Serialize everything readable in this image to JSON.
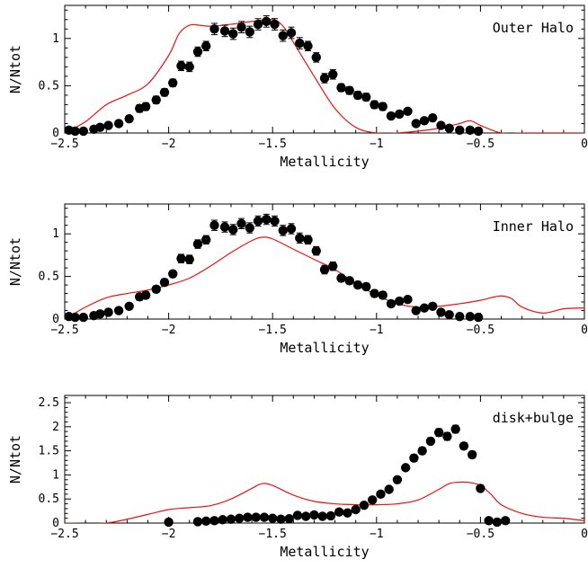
{
  "chart_data": [
    {
      "type": "scatter",
      "panel": "outer-halo",
      "annotation": "Outer Halo",
      "xlabel": "Metallicity",
      "ylabel": "N/Ntot",
      "xlim": [
        -2.5,
        0
      ],
      "ylim": [
        0,
        1.35
      ],
      "xticks": [
        {
          "v": -2.5,
          "label": "−2.5"
        },
        {
          "v": -2,
          "label": "−2"
        },
        {
          "v": -1.5,
          "label": "−1.5"
        },
        {
          "v": -1,
          "label": "−1"
        },
        {
          "v": -0.5,
          "label": "−0.5"
        },
        {
          "v": 0,
          "label": "0"
        }
      ],
      "yticks": [
        {
          "v": 0,
          "label": "0"
        },
        {
          "v": 0.5,
          "label": "0.5"
        },
        {
          "v": 1,
          "label": "1"
        }
      ],
      "points": {
        "x": [
          -2.48,
          -2.45,
          -2.41,
          -2.36,
          -2.33,
          -2.29,
          -2.24,
          -2.19,
          -2.14,
          -2.11,
          -2.06,
          -2.02,
          -1.98,
          -1.94,
          -1.9,
          -1.86,
          -1.82,
          -1.78,
          -1.73,
          -1.69,
          -1.65,
          -1.61,
          -1.57,
          -1.53,
          -1.49,
          -1.45,
          -1.41,
          -1.37,
          -1.33,
          -1.29,
          -1.25,
          -1.21,
          -1.17,
          -1.13,
          -1.09,
          -1.05,
          -1.01,
          -0.97,
          -0.93,
          -0.89,
          -0.85,
          -0.81,
          -0.77,
          -0.73,
          -0.69,
          -0.65,
          -0.6,
          -0.55,
          -0.51
        ],
        "y": [
          0.03,
          0.02,
          0.02,
          0.04,
          0.06,
          0.08,
          0.1,
          0.15,
          0.26,
          0.28,
          0.35,
          0.43,
          0.53,
          0.71,
          0.7,
          0.86,
          0.92,
          1.1,
          1.08,
          1.05,
          1.12,
          1.07,
          1.15,
          1.18,
          1.15,
          1.03,
          1.06,
          0.95,
          0.92,
          0.8,
          0.58,
          0.62,
          0.48,
          0.45,
          0.4,
          0.38,
          0.3,
          0.28,
          0.18,
          0.2,
          0.23,
          0.1,
          0.13,
          0.16,
          0.08,
          0.05,
          0.03,
          0.03,
          0.02
        ],
        "err": [
          0.03,
          0.03,
          0.03,
          0.03,
          0.03,
          0.03,
          0.03,
          0.03,
          0.04,
          0.04,
          0.04,
          0.04,
          0.04,
          0.05,
          0.05,
          0.05,
          0.05,
          0.06,
          0.06,
          0.06,
          0.06,
          0.06,
          0.06,
          0.06,
          0.06,
          0.06,
          0.06,
          0.06,
          0.05,
          0.05,
          0.05,
          0.05,
          0.04,
          0.04,
          0.04,
          0.04,
          0.04,
          0.04,
          0.03,
          0.03,
          0.03,
          0.03,
          0.03,
          0.03,
          0.03,
          0.03,
          0.03,
          0.03,
          0.03
        ]
      },
      "model_curve": {
        "x": [
          -2.5,
          -2.4,
          -2.3,
          -2.2,
          -2.1,
          -2.0,
          -1.95,
          -1.9,
          -1.85,
          -1.8,
          -1.7,
          -1.6,
          -1.5,
          -1.45,
          -1.4,
          -1.3,
          -1.2,
          -1.1,
          -1.0,
          -0.9,
          -0.8,
          -0.7,
          -0.6,
          -0.55,
          -0.5,
          -0.4,
          -0.3,
          -0.2,
          -0.1,
          0.0
        ],
        "y": [
          0.0,
          0.12,
          0.3,
          0.4,
          0.52,
          0.82,
          1.05,
          1.14,
          1.14,
          1.13,
          1.15,
          1.18,
          1.2,
          1.13,
          0.96,
          0.6,
          0.26,
          0.06,
          0.0,
          0.0,
          0.02,
          0.05,
          0.1,
          0.13,
          0.08,
          0.0,
          0.0,
          0.0,
          0.0,
          0.0
        ]
      },
      "colors": {
        "points": "#000000",
        "curve": "#ee1111"
      }
    },
    {
      "type": "scatter",
      "panel": "inner-halo",
      "annotation": "Inner Halo",
      "xlabel": "Metallicity",
      "ylabel": "N/Ntot",
      "xlim": [
        -2.5,
        0
      ],
      "ylim": [
        0,
        1.35
      ],
      "xticks": [
        {
          "v": -2.5,
          "label": "−2.5"
        },
        {
          "v": -2,
          "label": "−2"
        },
        {
          "v": -1.5,
          "label": "−1.5"
        },
        {
          "v": -1,
          "label": "−1"
        },
        {
          "v": -0.5,
          "label": "−0.5"
        },
        {
          "v": 0,
          "label": "0"
        }
      ],
      "yticks": [
        {
          "v": 0,
          "label": "0"
        },
        {
          "v": 0.5,
          "label": "0.5"
        },
        {
          "v": 1,
          "label": "1"
        }
      ],
      "points": {
        "x": [
          -2.48,
          -2.45,
          -2.41,
          -2.36,
          -2.33,
          -2.29,
          -2.24,
          -2.19,
          -2.14,
          -2.11,
          -2.06,
          -2.02,
          -1.98,
          -1.94,
          -1.9,
          -1.86,
          -1.82,
          -1.78,
          -1.73,
          -1.69,
          -1.65,
          -1.61,
          -1.57,
          -1.53,
          -1.49,
          -1.45,
          -1.41,
          -1.37,
          -1.33,
          -1.29,
          -1.25,
          -1.21,
          -1.17,
          -1.13,
          -1.09,
          -1.05,
          -1.01,
          -0.97,
          -0.93,
          -0.89,
          -0.85,
          -0.81,
          -0.77,
          -0.73,
          -0.69,
          -0.65,
          -0.6,
          -0.55,
          -0.51
        ],
        "y": [
          0.03,
          0.02,
          0.02,
          0.04,
          0.06,
          0.08,
          0.1,
          0.15,
          0.26,
          0.28,
          0.35,
          0.43,
          0.53,
          0.71,
          0.7,
          0.88,
          0.93,
          1.1,
          1.08,
          1.05,
          1.12,
          1.07,
          1.15,
          1.17,
          1.15,
          1.04,
          1.06,
          0.95,
          0.93,
          0.8,
          0.58,
          0.62,
          0.48,
          0.45,
          0.4,
          0.38,
          0.3,
          0.28,
          0.18,
          0.21,
          0.23,
          0.1,
          0.13,
          0.15,
          0.08,
          0.05,
          0.03,
          0.03,
          0.02
        ],
        "err": [
          0.03,
          0.03,
          0.03,
          0.03,
          0.03,
          0.03,
          0.03,
          0.03,
          0.04,
          0.04,
          0.04,
          0.04,
          0.04,
          0.05,
          0.05,
          0.05,
          0.05,
          0.06,
          0.06,
          0.06,
          0.06,
          0.06,
          0.06,
          0.06,
          0.06,
          0.06,
          0.06,
          0.06,
          0.05,
          0.05,
          0.05,
          0.05,
          0.04,
          0.04,
          0.04,
          0.04,
          0.04,
          0.04,
          0.03,
          0.03,
          0.03,
          0.03,
          0.03,
          0.03,
          0.03,
          0.03,
          0.03,
          0.03,
          0.03
        ]
      },
      "model_curve": {
        "x": [
          -2.5,
          -2.4,
          -2.3,
          -2.2,
          -2.1,
          -2.0,
          -1.9,
          -1.8,
          -1.7,
          -1.6,
          -1.55,
          -1.5,
          -1.4,
          -1.3,
          -1.2,
          -1.1,
          -1.0,
          -0.9,
          -0.8,
          -0.7,
          -0.6,
          -0.5,
          -0.45,
          -0.4,
          -0.35,
          -0.3,
          -0.2,
          -0.1,
          0.0
        ],
        "y": [
          0.0,
          0.14,
          0.25,
          0.3,
          0.34,
          0.4,
          0.48,
          0.62,
          0.78,
          0.92,
          0.96,
          0.94,
          0.82,
          0.7,
          0.58,
          0.42,
          0.28,
          0.18,
          0.14,
          0.15,
          0.18,
          0.22,
          0.25,
          0.27,
          0.24,
          0.14,
          0.07,
          0.12,
          0.13
        ]
      },
      "colors": {
        "points": "#000000",
        "curve": "#ee1111"
      }
    },
    {
      "type": "scatter",
      "panel": "disk-bulge",
      "annotation": "disk+bulge",
      "xlabel": "Metallicity",
      "ylabel": "N/Ntot",
      "xlim": [
        -2.5,
        0
      ],
      "ylim": [
        0,
        2.65
      ],
      "xticks": [
        {
          "v": -2.5,
          "label": "−2.5"
        },
        {
          "v": -2,
          "label": "−2"
        },
        {
          "v": -1.5,
          "label": "−1.5"
        },
        {
          "v": -1,
          "label": "−1"
        },
        {
          "v": -0.5,
          "label": "−0.5"
        },
        {
          "v": 0,
          "label": "0"
        }
      ],
      "yticks": [
        {
          "v": 0,
          "label": "0"
        },
        {
          "v": 0.5,
          "label": "0.5"
        },
        {
          "v": 1,
          "label": "1"
        },
        {
          "v": 1.5,
          "label": "1.5"
        },
        {
          "v": 2,
          "label": "2"
        },
        {
          "v": 2.5,
          "label": "2.5"
        }
      ],
      "points": {
        "x": [
          -2.0,
          -1.86,
          -1.82,
          -1.78,
          -1.74,
          -1.7,
          -1.66,
          -1.62,
          -1.58,
          -1.54,
          -1.5,
          -1.46,
          -1.42,
          -1.38,
          -1.34,
          -1.3,
          -1.26,
          -1.22,
          -1.18,
          -1.14,
          -1.1,
          -1.06,
          -1.02,
          -0.98,
          -0.94,
          -0.9,
          -0.86,
          -0.82,
          -0.78,
          -0.74,
          -0.7,
          -0.66,
          -0.62,
          -0.58,
          -0.54,
          -0.5,
          -0.46,
          -0.42,
          -0.38
        ],
        "y": [
          0.02,
          0.03,
          0.04,
          0.05,
          0.07,
          0.08,
          0.1,
          0.12,
          0.12,
          0.12,
          0.1,
          0.08,
          0.09,
          0.16,
          0.14,
          0.17,
          0.14,
          0.15,
          0.23,
          0.21,
          0.28,
          0.37,
          0.48,
          0.6,
          0.7,
          0.9,
          1.15,
          1.35,
          1.5,
          1.7,
          1.88,
          1.8,
          1.95,
          1.6,
          1.42,
          0.72,
          0.05,
          0.02,
          0.05
        ],
        "err": [
          0.02,
          0.02,
          0.02,
          0.02,
          0.02,
          0.02,
          0.02,
          0.02,
          0.02,
          0.02,
          0.02,
          0.02,
          0.02,
          0.02,
          0.02,
          0.02,
          0.02,
          0.02,
          0.03,
          0.03,
          0.03,
          0.04,
          0.04,
          0.05,
          0.05,
          0.06,
          0.06,
          0.07,
          0.07,
          0.07,
          0.08,
          0.08,
          0.08,
          0.07,
          0.07,
          0.05,
          0.02,
          0.02,
          0.02
        ]
      },
      "model_curve": {
        "x": [
          -2.5,
          -2.3,
          -2.1,
          -2.0,
          -1.9,
          -1.8,
          -1.7,
          -1.6,
          -1.55,
          -1.5,
          -1.4,
          -1.3,
          -1.2,
          -1.1,
          -1.0,
          -0.9,
          -0.8,
          -0.7,
          -0.65,
          -0.6,
          -0.55,
          -0.5,
          -0.45,
          -0.4,
          -0.3,
          -0.2,
          -0.1,
          0.0
        ],
        "y": [
          0.0,
          0.0,
          0.18,
          0.28,
          0.32,
          0.36,
          0.5,
          0.72,
          0.82,
          0.78,
          0.58,
          0.45,
          0.4,
          0.38,
          0.38,
          0.4,
          0.48,
          0.7,
          0.82,
          0.85,
          0.84,
          0.78,
          0.6,
          0.38,
          0.2,
          0.12,
          0.1,
          0.05
        ]
      },
      "colors": {
        "points": "#000000",
        "curve": "#ee1111"
      }
    }
  ]
}
